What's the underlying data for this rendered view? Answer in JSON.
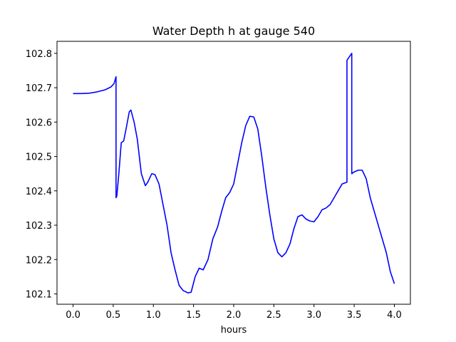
{
  "chart_data": {
    "type": "line",
    "title": "Water Depth h at gauge 540",
    "xlabel": "hours",
    "ylabel": "",
    "xlim": [
      -0.2,
      4.2
    ],
    "ylim": [
      102.07,
      102.835
    ],
    "xticks": [
      0.0,
      0.5,
      1.0,
      1.5,
      2.0,
      2.5,
      3.0,
      3.5,
      4.0
    ],
    "xtick_labels": [
      "0.0",
      "0.5",
      "1.0",
      "1.5",
      "2.0",
      "2.5",
      "3.0",
      "3.5",
      "4.0"
    ],
    "yticks": [
      102.1,
      102.2,
      102.3,
      102.4,
      102.5,
      102.6,
      102.7,
      102.8
    ],
    "ytick_labels": [
      "102.1",
      "102.2",
      "102.3",
      "102.4",
      "102.5",
      "102.6",
      "102.7",
      "102.8"
    ],
    "grid": false,
    "series": [
      {
        "color": "#0000ff",
        "points": [
          [
            0.0,
            102.683
          ],
          [
            0.1,
            102.683
          ],
          [
            0.2,
            102.684
          ],
          [
            0.3,
            102.688
          ],
          [
            0.4,
            102.694
          ],
          [
            0.47,
            102.702
          ],
          [
            0.51,
            102.712
          ],
          [
            0.535,
            102.732
          ],
          [
            0.535,
            102.38
          ],
          [
            0.545,
            102.385
          ],
          [
            0.57,
            102.45
          ],
          [
            0.6,
            102.54
          ],
          [
            0.63,
            102.545
          ],
          [
            0.66,
            102.58
          ],
          [
            0.7,
            102.63
          ],
          [
            0.72,
            102.635
          ],
          [
            0.76,
            102.6
          ],
          [
            0.8,
            102.55
          ],
          [
            0.85,
            102.45
          ],
          [
            0.9,
            102.415
          ],
          [
            0.93,
            102.425
          ],
          [
            0.98,
            102.45
          ],
          [
            1.02,
            102.447
          ],
          [
            1.07,
            102.42
          ],
          [
            1.12,
            102.36
          ],
          [
            1.17,
            102.3
          ],
          [
            1.22,
            102.22
          ],
          [
            1.27,
            102.17
          ],
          [
            1.32,
            102.125
          ],
          [
            1.37,
            102.11
          ],
          [
            1.43,
            102.103
          ],
          [
            1.47,
            102.105
          ],
          [
            1.52,
            102.15
          ],
          [
            1.57,
            102.175
          ],
          [
            1.62,
            102.17
          ],
          [
            1.68,
            102.2
          ],
          [
            1.74,
            102.26
          ],
          [
            1.8,
            102.295
          ],
          [
            1.85,
            102.34
          ],
          [
            1.9,
            102.38
          ],
          [
            1.95,
            102.395
          ],
          [
            2.0,
            102.42
          ],
          [
            2.05,
            102.48
          ],
          [
            2.1,
            102.54
          ],
          [
            2.15,
            102.59
          ],
          [
            2.2,
            102.617
          ],
          [
            2.25,
            102.615
          ],
          [
            2.3,
            102.58
          ],
          [
            2.35,
            102.5
          ],
          [
            2.4,
            102.41
          ],
          [
            2.45,
            102.33
          ],
          [
            2.5,
            102.26
          ],
          [
            2.55,
            102.22
          ],
          [
            2.6,
            102.208
          ],
          [
            2.65,
            102.22
          ],
          [
            2.7,
            102.245
          ],
          [
            2.75,
            102.29
          ],
          [
            2.8,
            102.325
          ],
          [
            2.85,
            102.33
          ],
          [
            2.9,
            102.318
          ],
          [
            2.95,
            102.312
          ],
          [
            3.0,
            102.31
          ],
          [
            3.05,
            102.325
          ],
          [
            3.1,
            102.345
          ],
          [
            3.15,
            102.35
          ],
          [
            3.2,
            102.36
          ],
          [
            3.25,
            102.38
          ],
          [
            3.3,
            102.4
          ],
          [
            3.35,
            102.42
          ],
          [
            3.41,
            102.425
          ],
          [
            3.41,
            102.78
          ],
          [
            3.44,
            102.79
          ],
          [
            3.47,
            102.8
          ],
          [
            3.47,
            102.45
          ],
          [
            3.5,
            102.455
          ],
          [
            3.55,
            102.46
          ],
          [
            3.6,
            102.46
          ],
          [
            3.65,
            102.435
          ],
          [
            3.7,
            102.38
          ],
          [
            3.75,
            102.34
          ],
          [
            3.8,
            102.3
          ],
          [
            3.85,
            102.26
          ],
          [
            3.9,
            102.22
          ],
          [
            3.95,
            102.165
          ],
          [
            4.0,
            102.13
          ]
        ]
      }
    ]
  }
}
